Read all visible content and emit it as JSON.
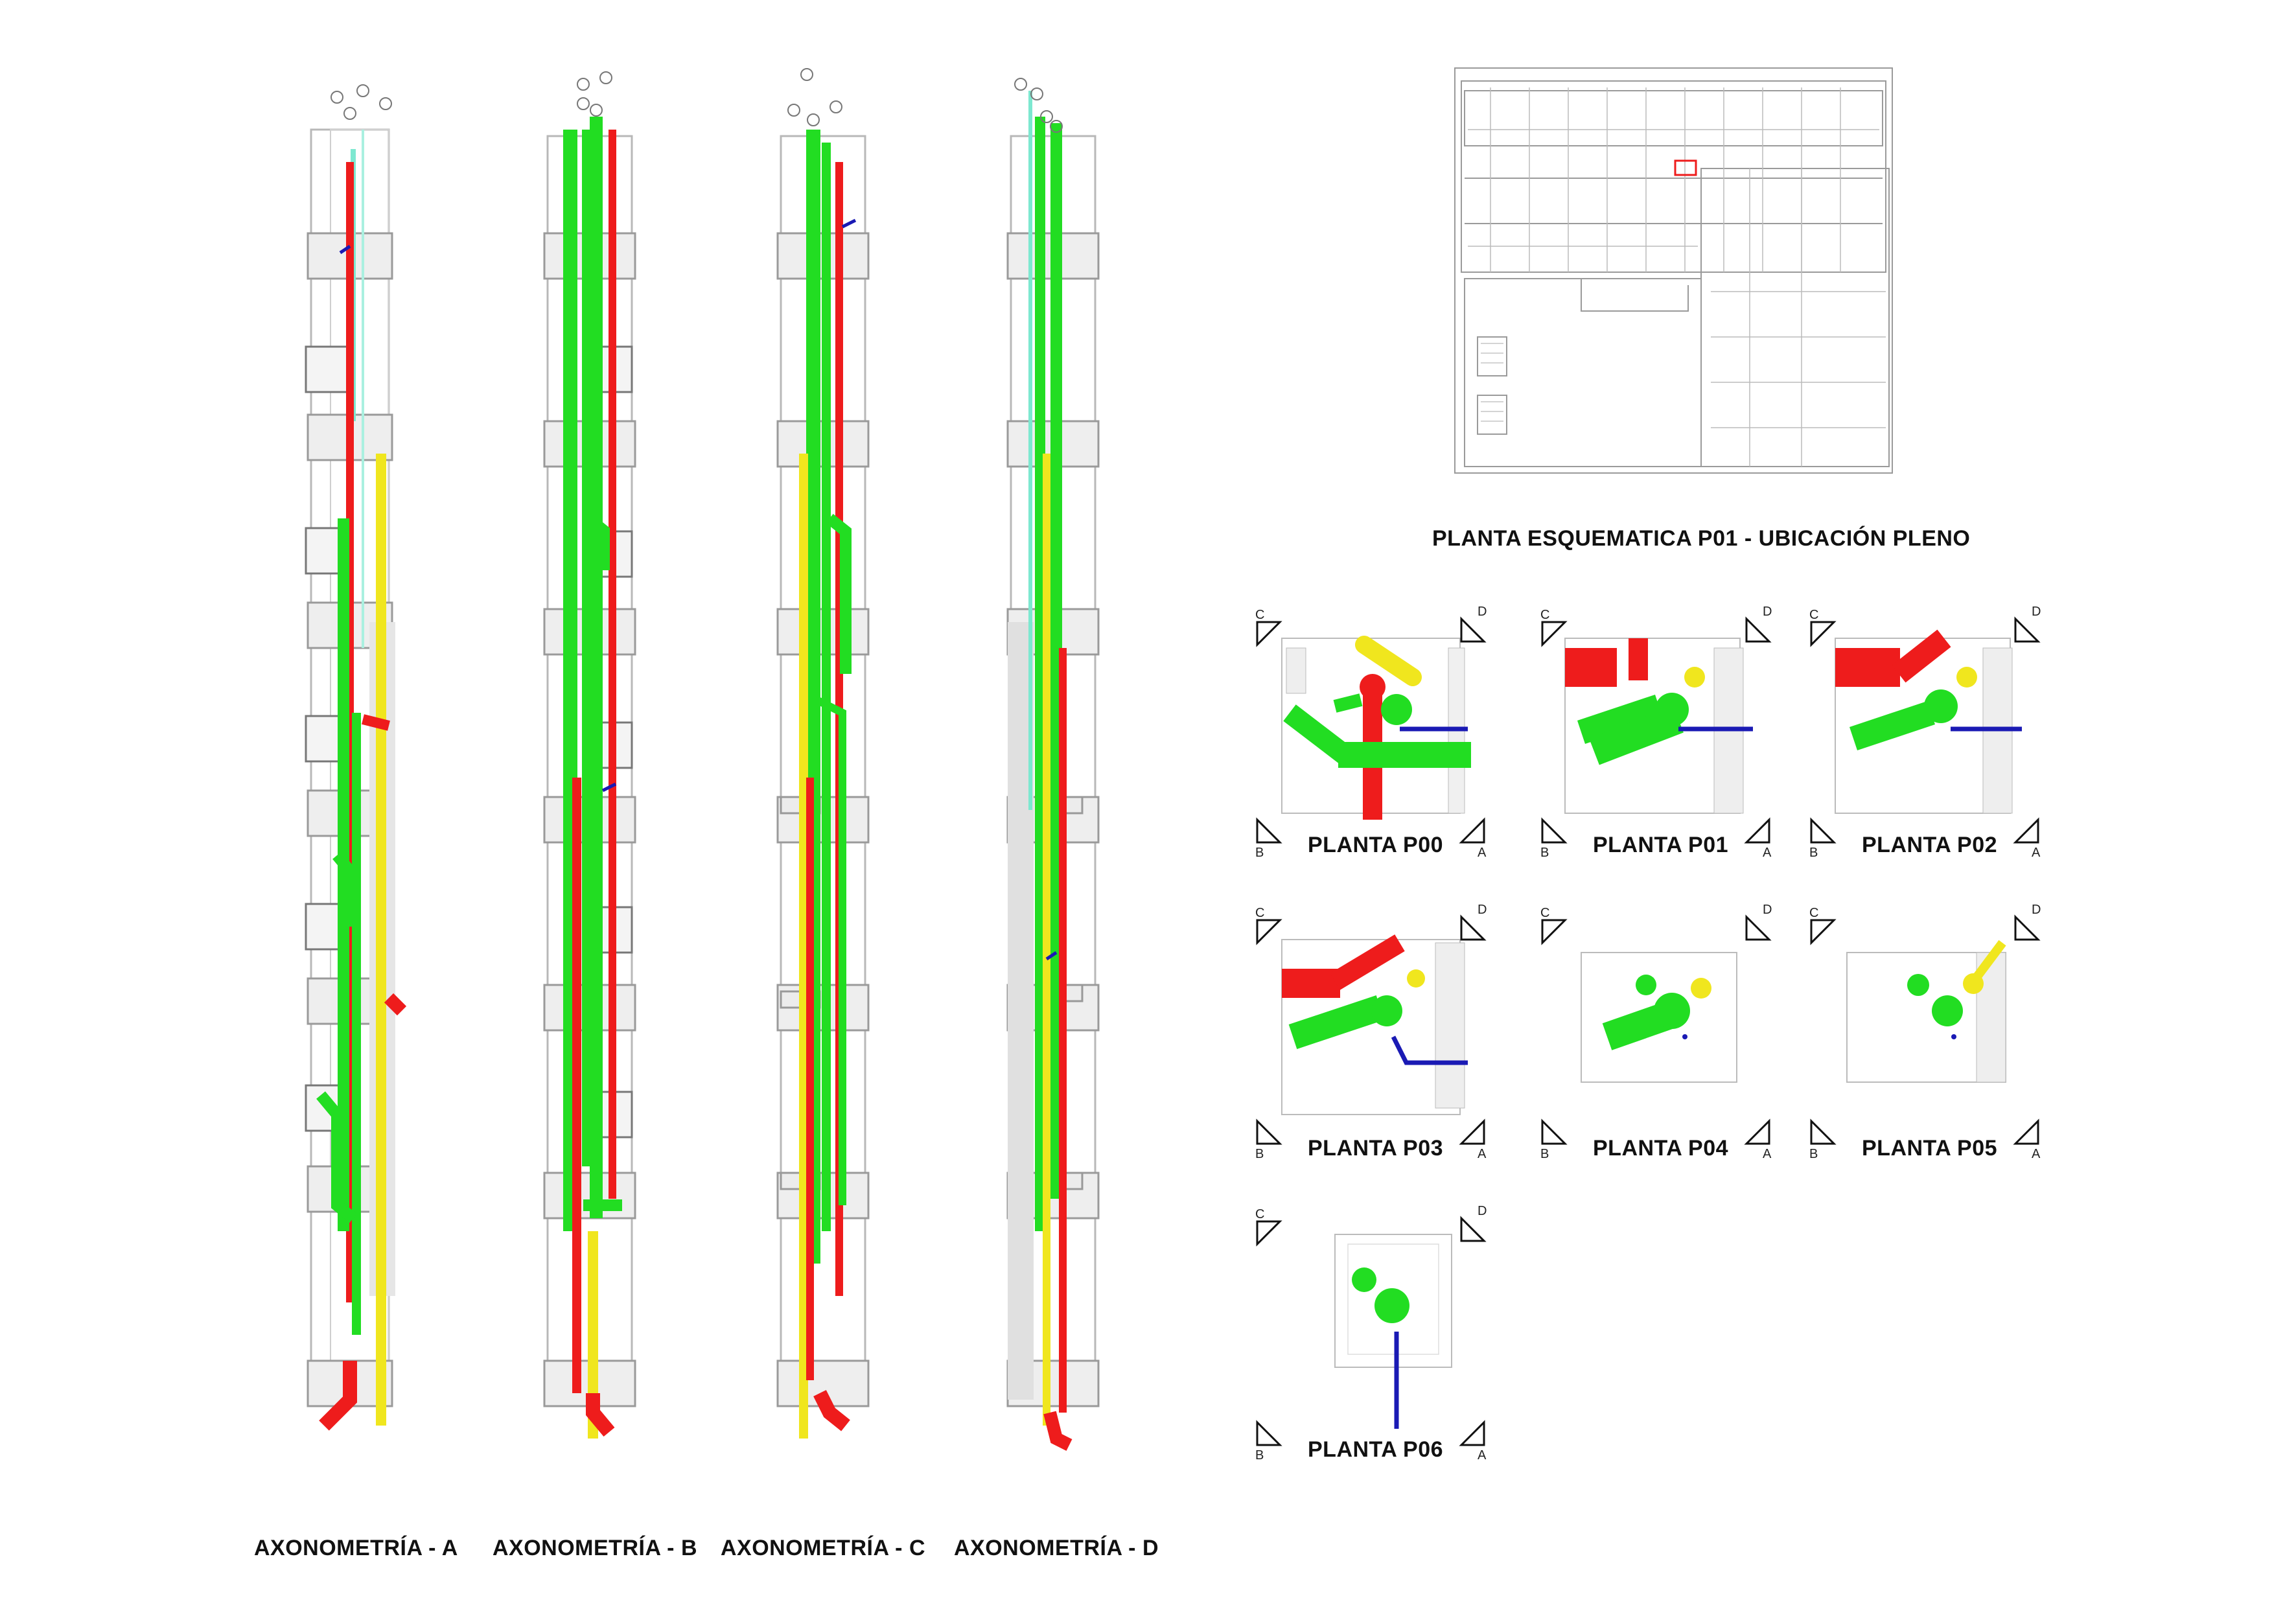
{
  "colors": {
    "green": "#22dd22",
    "red": "#ee1c1c",
    "yellow": "#f0e61e",
    "blue": "#1a1ab4",
    "cyan": "#7de8d0",
    "line": "#9a9a9a"
  },
  "axonometries": [
    {
      "label": "AXONOMETRÍA - A"
    },
    {
      "label": "AXONOMETRÍA - B"
    },
    {
      "label": "AXONOMETRÍA - C"
    },
    {
      "label": "AXONOMETRÍA - D"
    }
  ],
  "site_plan": {
    "title": "PLANTA ESQUEMATICA P01 - UBICACIÓN PLENO"
  },
  "plans": [
    {
      "label": "PLANTA P00"
    },
    {
      "label": "PLANTA P01"
    },
    {
      "label": "PLANTA P02"
    },
    {
      "label": "PLANTA P03"
    },
    {
      "label": "PLANTA P04"
    },
    {
      "label": "PLANTA P05"
    },
    {
      "label": "PLANTA P06"
    }
  ],
  "section_marks": {
    "c": "C",
    "d": "D",
    "b": "B",
    "a": "A"
  }
}
